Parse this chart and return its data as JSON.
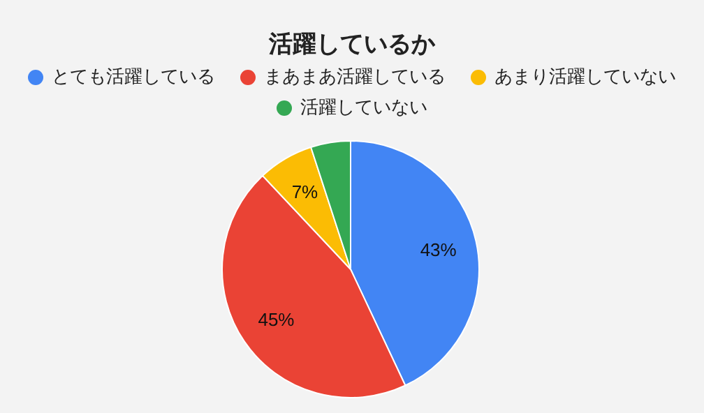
{
  "chart_data": {
    "type": "pie",
    "title": "活躍しているか",
    "categories": [
      "とても活躍している",
      "まあまあ活躍している",
      "あまり活躍していない",
      "活躍していない"
    ],
    "values": [
      43,
      45,
      7,
      5
    ],
    "colors": [
      "#4285f4",
      "#ea4335",
      "#fbbc04",
      "#34a853"
    ],
    "value_labels": [
      "43%",
      "45%",
      "7%",
      null
    ],
    "legend": "top"
  }
}
